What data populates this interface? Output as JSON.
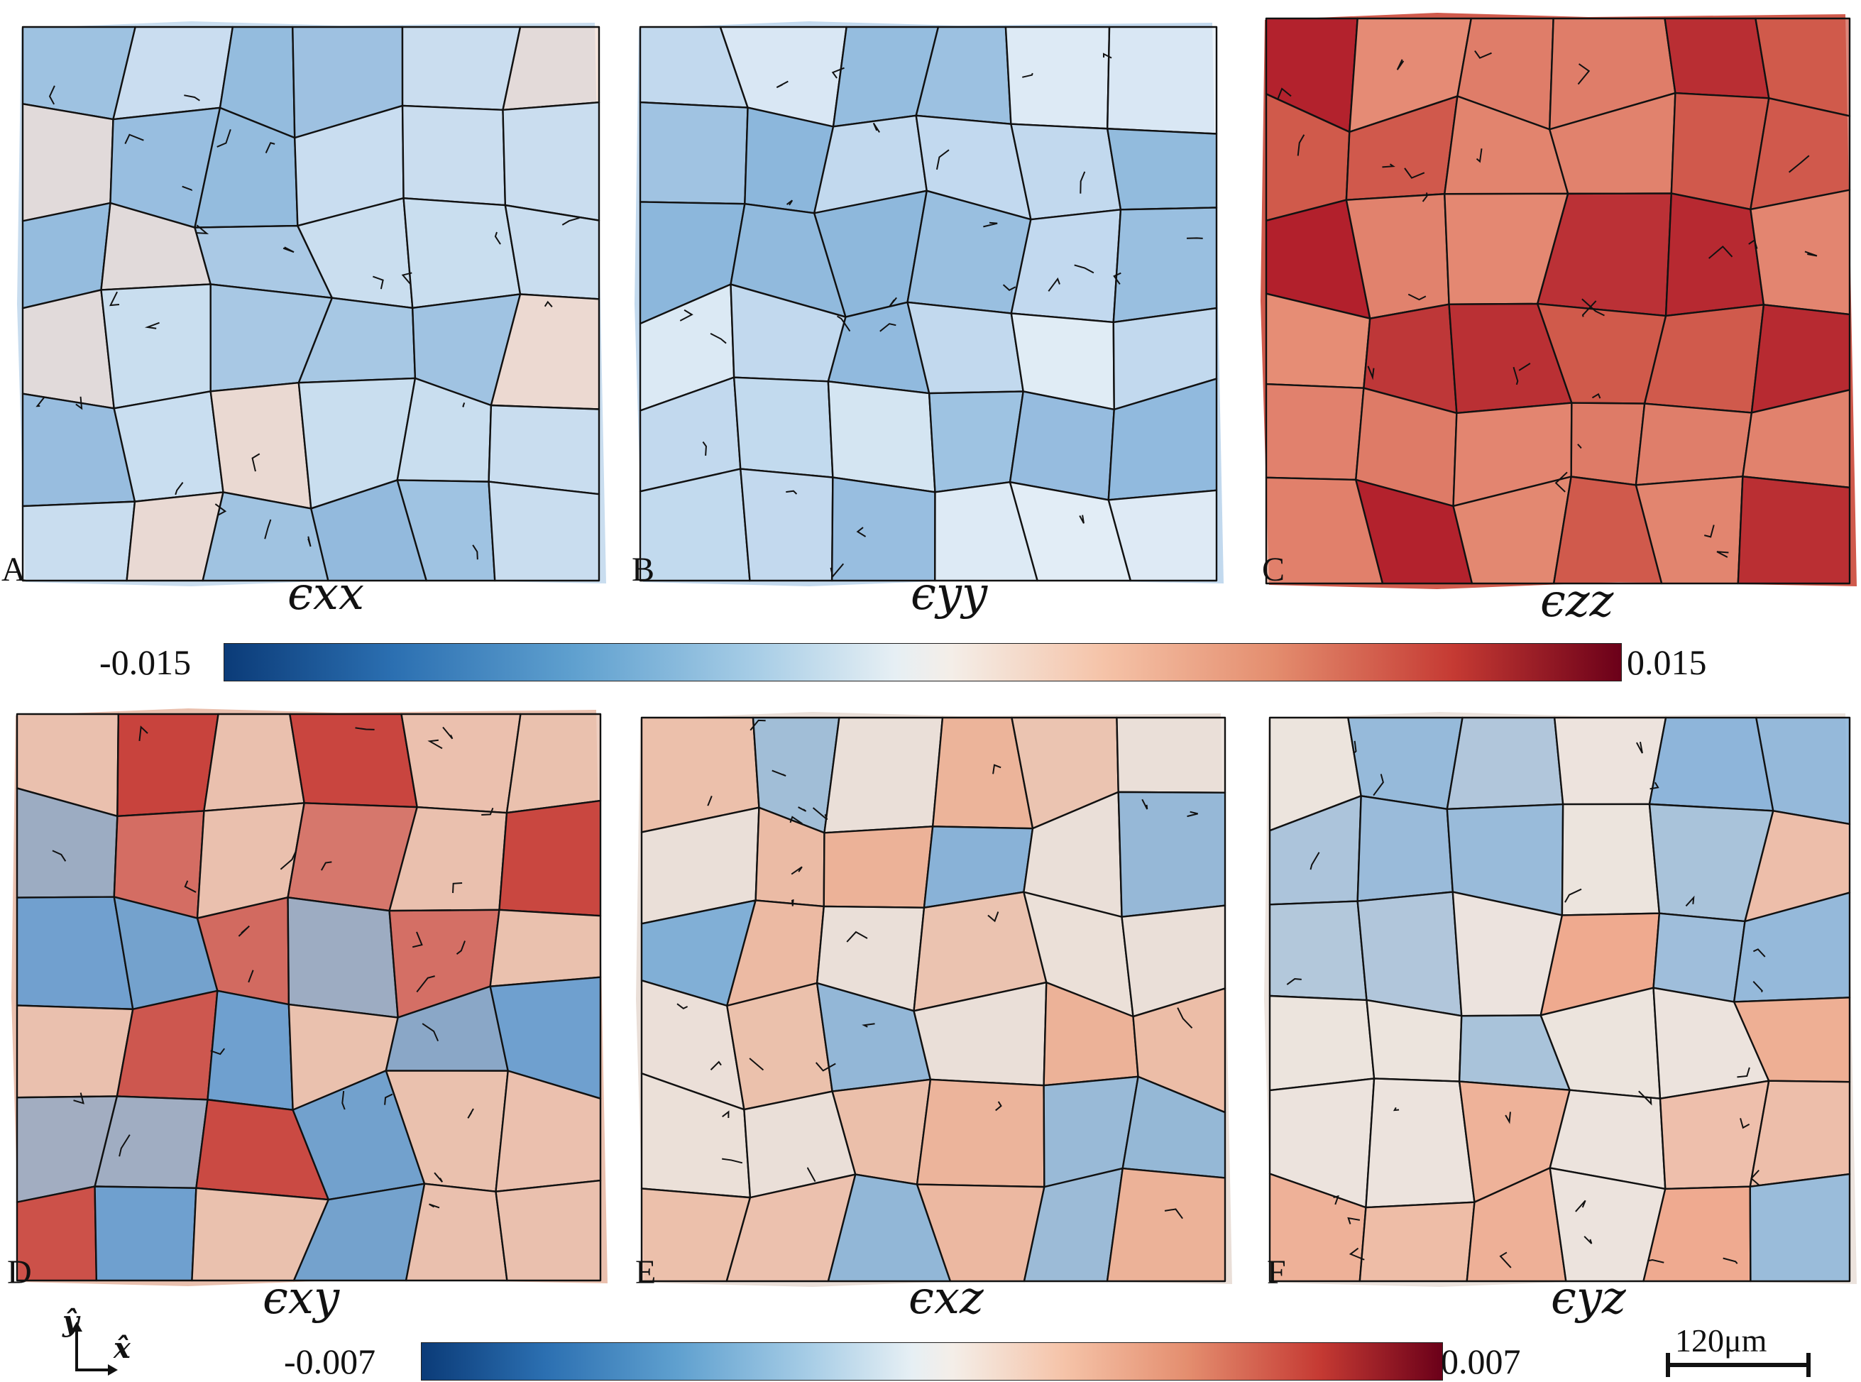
{
  "panels": [
    {
      "id": "A",
      "label": "A",
      "symbol": "ϵxx",
      "base": "#c9ddef",
      "tint": "#8fb8dc",
      "hot": "#f1d8cc"
    },
    {
      "id": "B",
      "label": "B",
      "symbol": "ϵyy",
      "base": "#c2d9ee",
      "tint": "#88b4da",
      "hot": "#e4eef6"
    },
    {
      "id": "C",
      "label": "C",
      "symbol": "ϵzz",
      "base": "#d05a4c",
      "tint": "#b01d2a",
      "hot": "#e9957d"
    },
    {
      "id": "D",
      "label": "D",
      "symbol": "ϵxy",
      "base": "#eac0ae",
      "tint": "#6c9fcf",
      "hot": "#c7403a"
    },
    {
      "id": "E",
      "label": "E",
      "symbol": "ϵxz",
      "base": "#eadfd8",
      "tint": "#7faed6",
      "hot": "#ecae92"
    },
    {
      "id": "F",
      "label": "F",
      "symbol": "ϵyz",
      "base": "#ece3dd",
      "tint": "#86b2d9",
      "hot": "#eea88c"
    }
  ],
  "colorbar_top": {
    "min_label": "-0.015",
    "max_label": "0.015"
  },
  "colorbar_bottom": {
    "min_label": "-0.007",
    "max_label": "0.007"
  },
  "axes": {
    "y_label": "ŷ",
    "x_label": "x̂"
  },
  "scale_bar": {
    "label": "120μm"
  },
  "colors": {
    "negative": "#0b3b78",
    "neutral": "#f2f0ee",
    "positive": "#6b0019",
    "grain_boundary": "#111111"
  }
}
